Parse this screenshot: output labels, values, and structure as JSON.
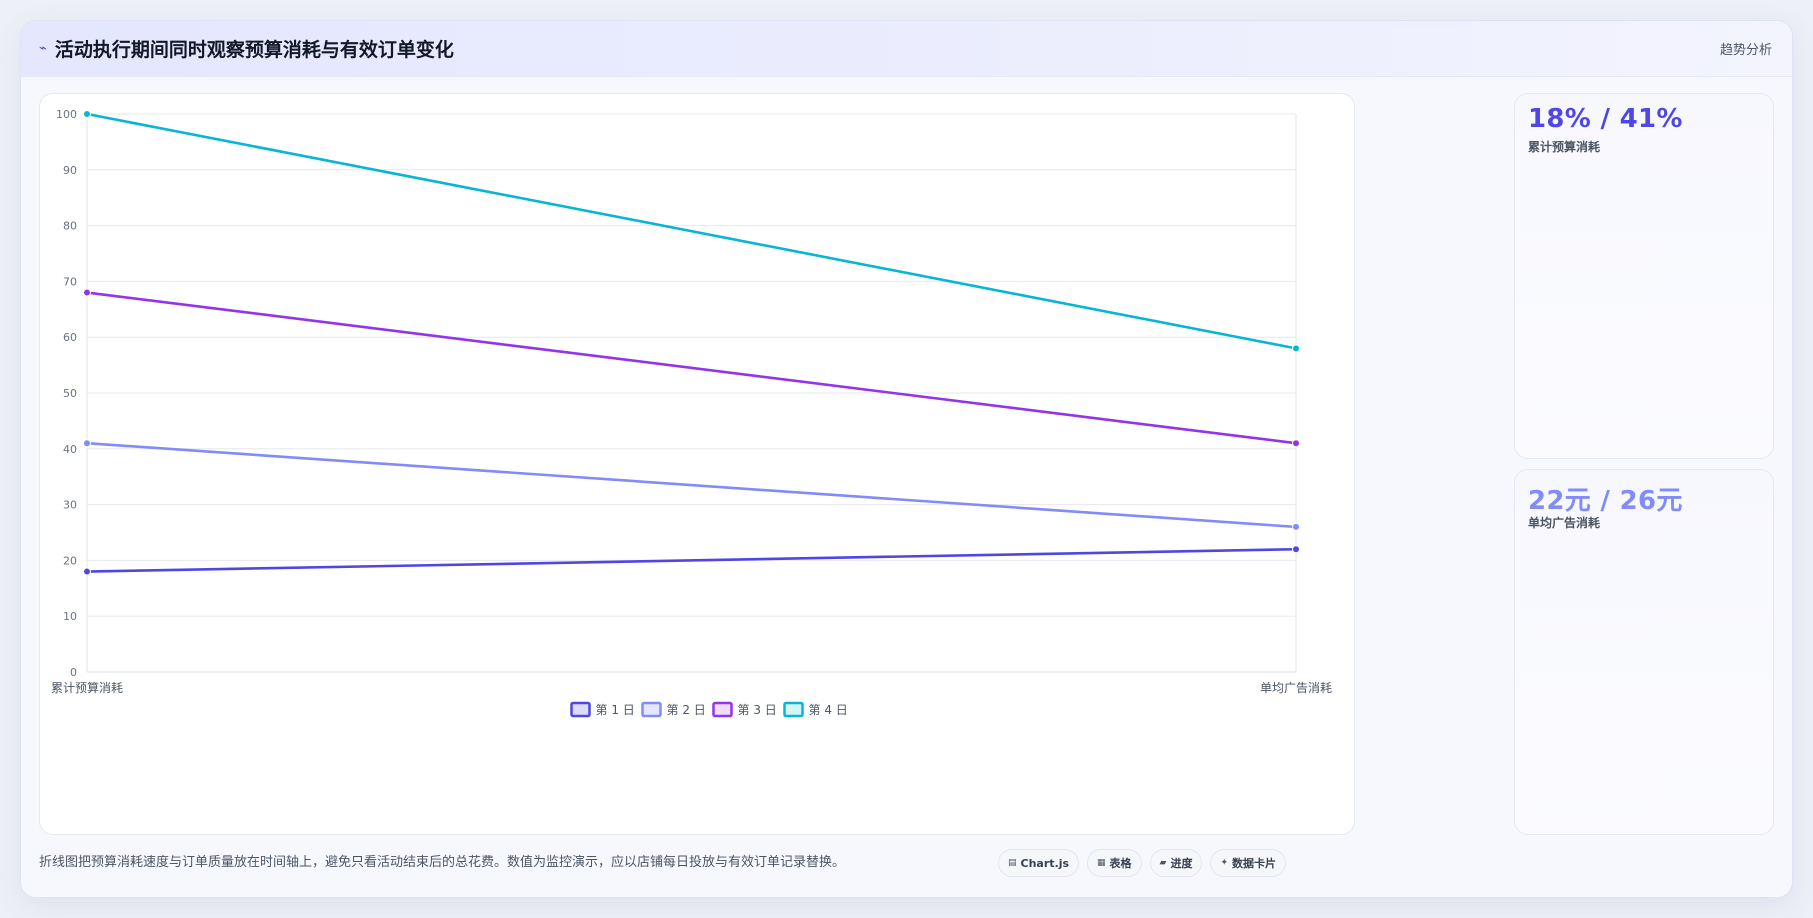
{
  "header": {
    "title": "活动执行期间同时观察预算消耗与有效订单变化",
    "icon": "trend-line-icon",
    "tag": "趋势分析"
  },
  "chart_data": {
    "type": "line",
    "categories": [
      "累计预算消耗",
      "单均广告消耗"
    ],
    "series": [
      {
        "name": "第 1 日",
        "values": [
          18,
          22
        ],
        "color": "#4f46e5"
      },
      {
        "name": "第 2 日",
        "values": [
          41,
          26
        ],
        "color": "#818cf8"
      },
      {
        "name": "第 3 日",
        "values": [
          68,
          41
        ],
        "color": "#9333ea"
      },
      {
        "name": "第 4 日",
        "values": [
          100,
          58
        ],
        "color": "#06b6d4"
      }
    ],
    "ylim": [
      0,
      100
    ],
    "yticks": [
      0,
      10,
      20,
      30,
      40,
      50,
      60,
      70,
      80,
      90,
      100
    ],
    "grid": true,
    "legend": "bottom"
  },
  "kpis": [
    {
      "value": "18% / 41%",
      "label": "累计预算消耗",
      "color": "#4f46e5"
    },
    {
      "value": "22元 / 26元",
      "label": "单均广告消耗",
      "color": "#818cf8"
    }
  ],
  "footnote": "折线图把预算消耗速度与订单质量放在时间轴上，避免只看活动结束后的总花费。数值为监控演示，应以店铺每日投放与有效订单记录替换。",
  "chips": [
    {
      "icon": "chart-icon",
      "glyph": "▤",
      "label": "Chart.js"
    },
    {
      "icon": "table-icon",
      "glyph": "▦",
      "label": "表格"
    },
    {
      "icon": "progress-icon",
      "glyph": "▰",
      "label": "进度"
    },
    {
      "icon": "sparkle-icon",
      "glyph": "✦",
      "label": "数据卡片"
    }
  ]
}
